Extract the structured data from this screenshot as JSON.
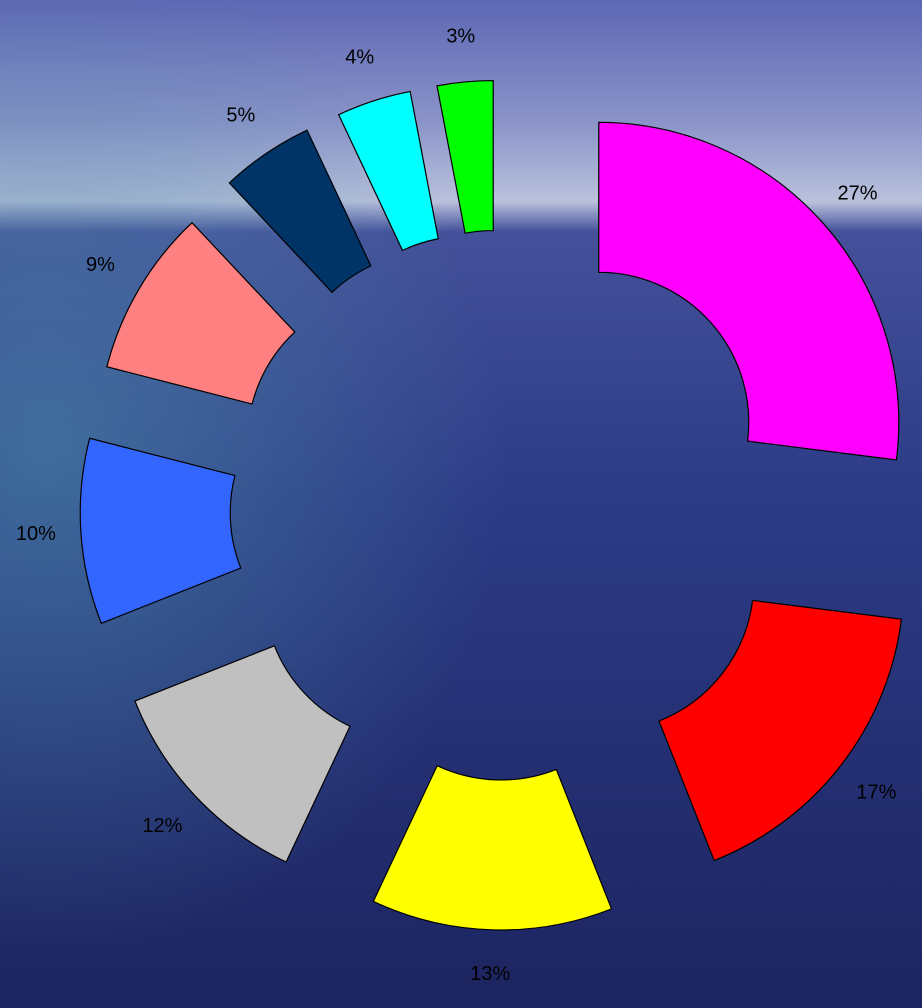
{
  "chart_data": {
    "type": "pie",
    "values": [
      27,
      17,
      13,
      12,
      10,
      9,
      5,
      4,
      3
    ],
    "value_labels": [
      "27%",
      "17%",
      "13%",
      "12%",
      "10%",
      "9%",
      "5%",
      "4%",
      "3%"
    ],
    "colors": [
      "#ff00ff",
      "#ff0000",
      "#ffff00",
      "#c0c0c0",
      "#3366ff",
      "#ff8080",
      "#003366",
      "#00ffff",
      "#00ff00"
    ]
  }
}
